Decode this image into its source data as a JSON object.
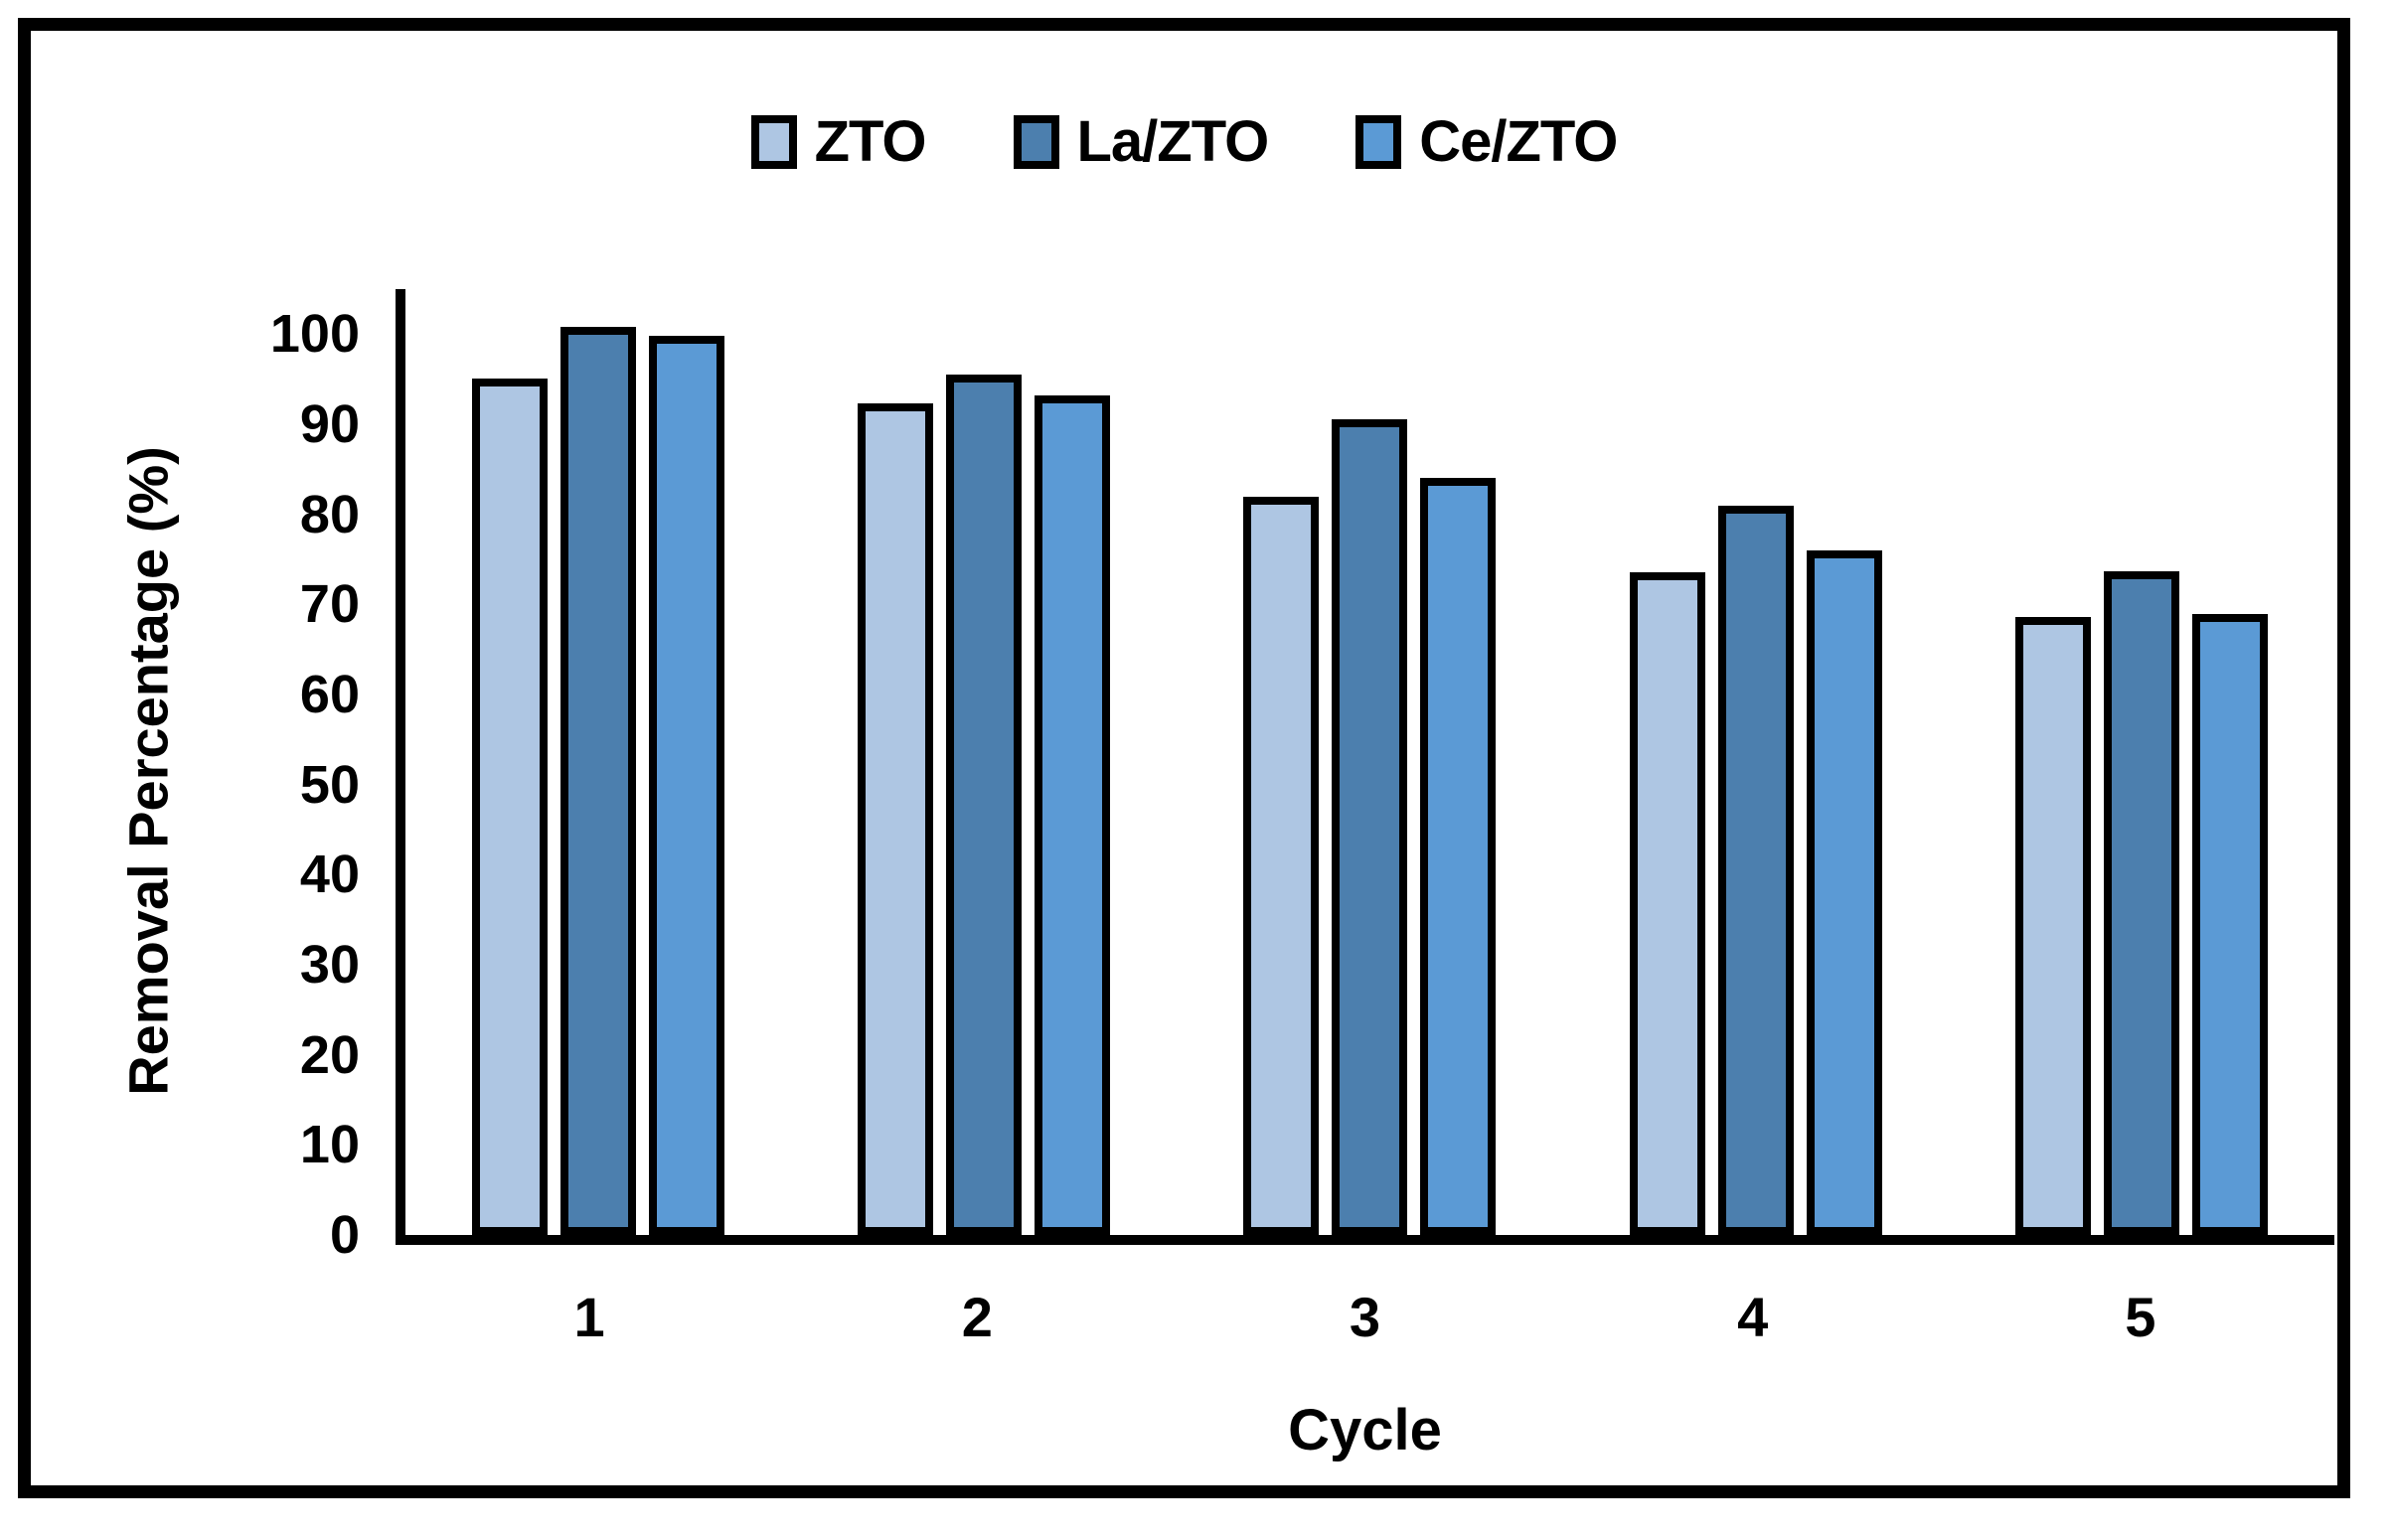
{
  "chart_data": {
    "type": "bar",
    "title": "",
    "xlabel": "Cycle",
    "ylabel": "Removal Percentage (%)",
    "categories": [
      "1",
      "2",
      "3",
      "4",
      "5"
    ],
    "series": [
      {
        "name": "ZTO",
        "color": "#AEC6E3",
        "values": [
          93.3,
          90.6,
          80.2,
          71.8,
          66.8
        ]
      },
      {
        "name": "La/ZTO",
        "color": "#4C7FAE",
        "values": [
          99.0,
          93.8,
          88.8,
          79.2,
          71.9
        ]
      },
      {
        "name": "Ce/ZTO",
        "color": "#5B9AD5",
        "values": [
          98.1,
          91.4,
          82.3,
          74.2,
          67.2
        ]
      }
    ],
    "ylim": [
      0,
      100
    ],
    "yticks": [
      0,
      10,
      20,
      30,
      40,
      50,
      60,
      70,
      80,
      90,
      100
    ],
    "legend_position": "top",
    "grid": false,
    "bar_border_color": "#000000"
  }
}
